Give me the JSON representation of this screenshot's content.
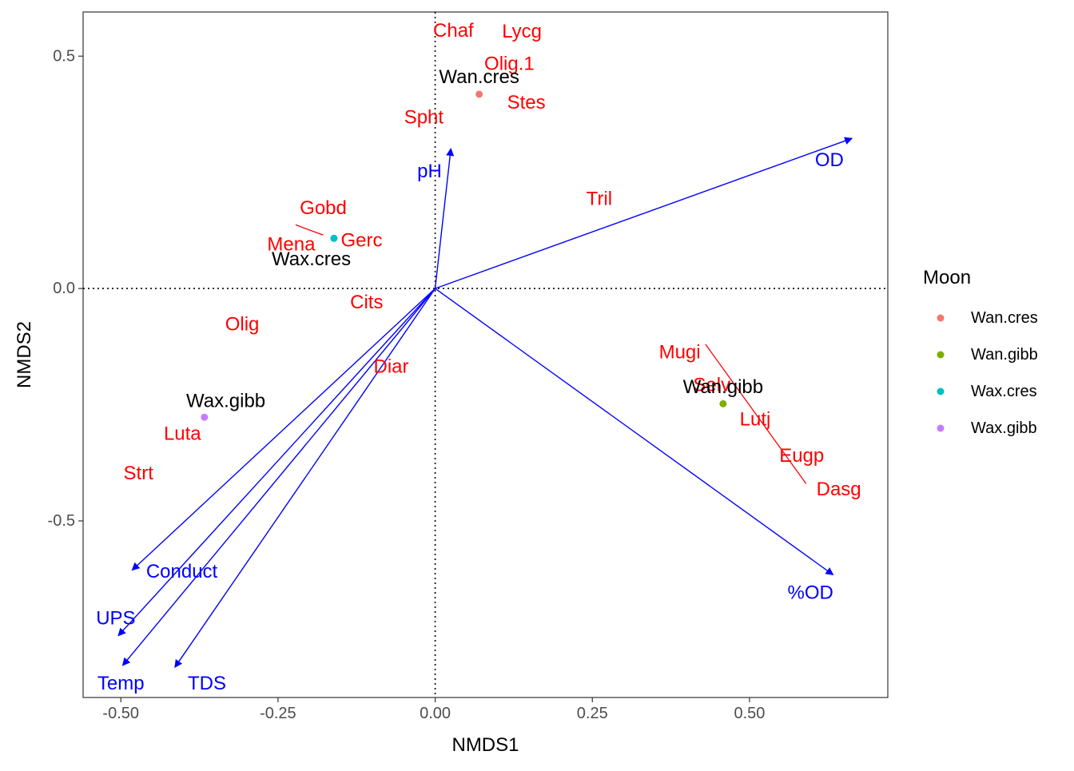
{
  "chart_data": {
    "type": "scatter",
    "xlabel": "NMDS1",
    "ylabel": "NMDS2",
    "xlim": [
      -0.56,
      0.72
    ],
    "ylim": [
      -0.88,
      0.595
    ],
    "x_ticks": [
      -0.5,
      -0.25,
      0.0,
      0.25,
      0.5
    ],
    "x_tick_labels": [
      "-0.50",
      "-0.25",
      "0.00",
      "0.25",
      "0.50"
    ],
    "y_ticks": [
      0.5,
      0.0,
      -0.5
    ],
    "y_tick_labels": [
      "0.5",
      "0.0",
      "-0.5"
    ],
    "reference_lines": {
      "x": 0,
      "y": 0
    },
    "grid": false,
    "legend": {
      "title": "Moon",
      "position": "right",
      "entries": [
        {
          "name": "Wan.cres",
          "color": "#F8766D"
        },
        {
          "name": "Wan.gibb",
          "color": "#7CAE00"
        },
        {
          "name": "Wax.cres",
          "color": "#00BFC4"
        },
        {
          "name": "Wax.gibb",
          "color": "#C77CFF"
        }
      ]
    },
    "sites": [
      {
        "name": "Wan.cres",
        "x": 0.07,
        "y": 0.418,
        "color": "#F8766D",
        "label_x": 0.07,
        "label_y": 0.455
      },
      {
        "name": "Wan.gibb",
        "x": 0.458,
        "y": -0.248,
        "color": "#7CAE00",
        "label_x": 0.458,
        "label_y": -0.212
      },
      {
        "name": "Wax.cres",
        "x": -0.161,
        "y": 0.108,
        "color": "#00BFC4",
        "label_x": -0.197,
        "label_y": 0.063
      },
      {
        "name": "Wax.gibb",
        "x": -0.367,
        "y": -0.277,
        "color": "#C77CFF",
        "label_x": -0.333,
        "label_y": -0.242
      }
    ],
    "species": [
      {
        "name": "Chaf",
        "x": 0.029,
        "y": 0.555
      },
      {
        "name": "Lycg",
        "x": 0.138,
        "y": 0.553
      },
      {
        "name": "Olig.1",
        "x": 0.118,
        "y": 0.483
      },
      {
        "name": "Stes",
        "x": 0.145,
        "y": 0.4
      },
      {
        "name": "Spht",
        "x": -0.018,
        "y": 0.368
      },
      {
        "name": "Tril",
        "x": 0.261,
        "y": 0.193
      },
      {
        "name": "Gobd",
        "x": -0.178,
        "y": 0.173
      },
      {
        "name": "Gerc",
        "x": -0.117,
        "y": 0.103
      },
      {
        "name": "Mena",
        "x": -0.229,
        "y": 0.095
      },
      {
        "name": "Cits",
        "x": -0.109,
        "y": -0.03
      },
      {
        "name": "Olig",
        "x": -0.307,
        "y": -0.077
      },
      {
        "name": "Diar",
        "x": -0.07,
        "y": -0.168
      },
      {
        "name": "Mugi",
        "x": 0.389,
        "y": -0.137
      },
      {
        "name": "Selv",
        "x": 0.44,
        "y": -0.208
      },
      {
        "name": "Lutj",
        "x": 0.509,
        "y": -0.282
      },
      {
        "name": "Eugp",
        "x": 0.583,
        "y": -0.36
      },
      {
        "name": "Dasg",
        "x": 0.642,
        "y": -0.432
      },
      {
        "name": "Luta",
        "x": -0.402,
        "y": -0.313
      },
      {
        "name": "Strt",
        "x": -0.472,
        "y": -0.398
      }
    ],
    "species_segments": [
      {
        "x1": 0.43,
        "y1": -0.12,
        "x2": 0.59,
        "y2": -0.42
      },
      {
        "x1": -0.222,
        "y1": 0.137,
        "x2": -0.178,
        "y2": 0.115
      }
    ],
    "env_vectors": [
      {
        "name": "pH",
        "x": 0.025,
        "y": 0.301,
        "label_x": -0.009,
        "label_y": 0.252
      },
      {
        "name": "OD",
        "x": 0.663,
        "y": 0.323,
        "label_x": 0.627,
        "label_y": 0.276
      },
      {
        "name": "%OD",
        "x": 0.633,
        "y": -0.616,
        "label_x": 0.597,
        "label_y": -0.655
      },
      {
        "name": "Conduct",
        "x": -0.482,
        "y": -0.606,
        "label_x": -0.403,
        "label_y": -0.609
      },
      {
        "name": "UPS",
        "x": -0.504,
        "y": -0.747,
        "label_x": -0.508,
        "label_y": -0.71
      },
      {
        "name": "Temp",
        "x": -0.497,
        "y": -0.811,
        "label_x": -0.5,
        "label_y": -0.85
      },
      {
        "name": "TDS",
        "x": -0.414,
        "y": -0.815,
        "label_x": -0.363,
        "label_y": -0.85
      }
    ]
  }
}
